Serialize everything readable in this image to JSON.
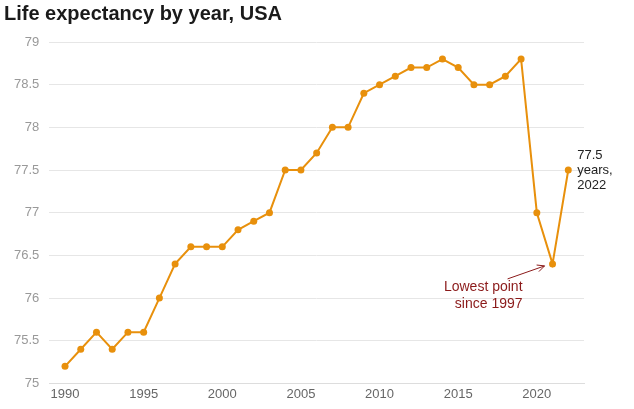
{
  "chart_data": {
    "type": "line",
    "title": "Life expectancy by year, USA",
    "x": [
      1990,
      1991,
      1992,
      1993,
      1994,
      1995,
      1996,
      1997,
      1998,
      1999,
      2000,
      2001,
      2002,
      2003,
      2004,
      2005,
      2006,
      2007,
      2008,
      2009,
      2010,
      2011,
      2012,
      2013,
      2014,
      2015,
      2016,
      2017,
      2018,
      2019,
      2020,
      2021,
      2022
    ],
    "values": [
      75.2,
      75.4,
      75.6,
      75.4,
      75.6,
      75.6,
      76.0,
      76.4,
      76.6,
      76.6,
      76.6,
      76.8,
      76.9,
      77.0,
      77.5,
      77.5,
      77.7,
      78.0,
      78.0,
      78.4,
      78.5,
      78.6,
      78.7,
      78.7,
      78.8,
      78.7,
      78.5,
      78.5,
      78.6,
      78.8,
      77.0,
      76.4,
      77.5
    ],
    "color": "#e8900c",
    "marker": "circle",
    "line_style": "solid",
    "xlim": [
      1989,
      2023
    ],
    "xticks": [
      1990,
      1995,
      2000,
      2005,
      2010,
      2015,
      2020
    ],
    "ylim": [
      75,
      79
    ],
    "yticks": [
      75,
      75.5,
      76,
      76.5,
      77,
      77.5,
      78,
      78.5,
      79
    ],
    "grid": true,
    "annotations": [
      {
        "text": [
          "77.5",
          "years,",
          "2022"
        ],
        "x": 2022
      },
      {
        "text": [
          "Lowest point",
          "since 1997"
        ],
        "x": 2021
      }
    ]
  }
}
